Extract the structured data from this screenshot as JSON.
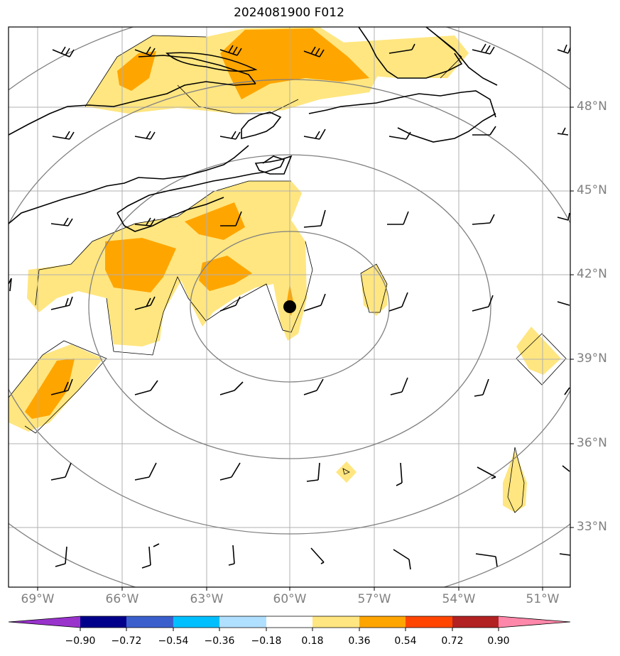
{
  "title": "2024081900 F012",
  "latitude_labels": [
    "48°N",
    "45°N",
    "42°N",
    "39°N",
    "36°N",
    "33°N"
  ],
  "longitude_labels": [
    "69°W",
    "66°W",
    "63°W",
    "60°W",
    "57°W",
    "54°W",
    "51°W"
  ],
  "colorbar": {
    "tick_labels": [
      "−0.90",
      "−0.72",
      "−0.54",
      "−0.36",
      "−0.18",
      "0.18",
      "0.36",
      "0.54",
      "0.72",
      "0.90"
    ],
    "colors": [
      "#9933cc",
      "#00008b",
      "#3a5fcd",
      "#00bfff",
      "#b0e0ff",
      "#ffffff",
      "#ffe680",
      "#ffa500",
      "#ff4500",
      "#b22222",
      "#ff88aa"
    ]
  },
  "map": {
    "lon_range": [
      -70,
      -50
    ],
    "lat_range": [
      31,
      51
    ],
    "center_marker": {
      "lon": -60,
      "lat": 41
    },
    "colors": {
      "light_fill": "#ffe680",
      "dark_fill": "#ffa500",
      "coast": "#000000",
      "grid": "#b0b0b0",
      "ring": "#808080"
    }
  }
}
